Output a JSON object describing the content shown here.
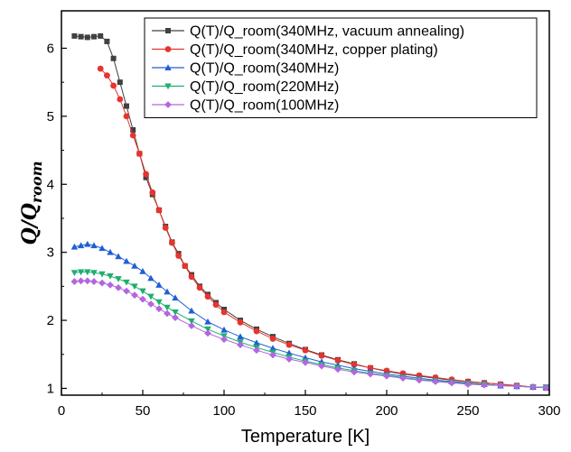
{
  "chart_data": {
    "type": "scatter",
    "xlabel": "Temperature [K]",
    "ylabel_main": "Q/Q",
    "ylabel_sub": "room",
    "xlim": [
      0,
      300
    ],
    "ylim": [
      0.9,
      6.55
    ],
    "xticks": [
      0,
      50,
      100,
      150,
      200,
      250,
      300
    ],
    "yticks": [
      1,
      2,
      3,
      4,
      5,
      6
    ],
    "grid": false,
    "legend_position": "top-right",
    "series": [
      {
        "name": "Q(T)/Q_room(340MHz, vacuum annealing)",
        "color": "#404040",
        "marker": "square",
        "connect": true,
        "x": [
          8,
          12,
          16,
          20,
          24,
          28,
          32,
          36,
          40,
          44,
          48,
          52,
          56,
          60,
          64,
          68,
          72,
          76,
          80,
          85,
          90,
          95,
          100,
          110,
          120,
          130,
          140,
          150,
          160,
          170,
          180,
          190,
          200,
          210,
          220,
          230,
          240,
          250,
          260,
          270,
          280,
          290,
          298
        ],
        "y": [
          6.18,
          6.17,
          6.16,
          6.17,
          6.18,
          6.1,
          5.85,
          5.5,
          5.15,
          4.8,
          4.45,
          4.1,
          3.85,
          3.62,
          3.38,
          3.15,
          2.98,
          2.8,
          2.67,
          2.5,
          2.38,
          2.26,
          2.16,
          2.0,
          1.87,
          1.76,
          1.66,
          1.57,
          1.49,
          1.42,
          1.36,
          1.3,
          1.25,
          1.21,
          1.18,
          1.15,
          1.12,
          1.1,
          1.08,
          1.06,
          1.04,
          1.02,
          1.01
        ]
      },
      {
        "name": "Q(T)/Q_room(340MHz, copper plating)",
        "color": "#e8332e",
        "marker": "circle",
        "connect": true,
        "x": [
          24,
          28,
          32,
          36,
          40,
          44,
          48,
          52,
          56,
          60,
          64,
          68,
          72,
          76,
          80,
          85,
          90,
          95,
          100,
          110,
          120,
          130,
          140,
          150,
          160,
          170,
          180,
          190,
          200,
          210,
          220,
          230,
          240,
          250,
          260,
          270,
          280,
          290,
          298
        ],
        "y": [
          5.7,
          5.6,
          5.45,
          5.25,
          5.0,
          4.72,
          4.45,
          4.15,
          3.88,
          3.62,
          3.36,
          3.14,
          2.95,
          2.8,
          2.64,
          2.48,
          2.35,
          2.23,
          2.12,
          1.97,
          1.84,
          1.73,
          1.64,
          1.56,
          1.48,
          1.41,
          1.35,
          1.3,
          1.26,
          1.22,
          1.19,
          1.16,
          1.13,
          1.1,
          1.08,
          1.06,
          1.04,
          1.02,
          1.01
        ]
      },
      {
        "name": "Q(T)/Q_room(340MHz)",
        "color": "#1f5fd6",
        "marker": "triangle-up",
        "connect": true,
        "x": [
          8,
          12,
          16,
          20,
          25,
          30,
          35,
          40,
          45,
          50,
          55,
          60,
          65,
          70,
          80,
          90,
          100,
          110,
          120,
          130,
          140,
          150,
          160,
          170,
          180,
          190,
          200,
          210,
          220,
          230,
          240,
          250,
          260,
          270,
          280,
          290,
          298
        ],
        "y": [
          3.08,
          3.1,
          3.12,
          3.1,
          3.06,
          3.0,
          2.94,
          2.87,
          2.8,
          2.72,
          2.62,
          2.52,
          2.42,
          2.33,
          2.14,
          1.98,
          1.86,
          1.76,
          1.67,
          1.59,
          1.52,
          1.45,
          1.39,
          1.34,
          1.29,
          1.25,
          1.21,
          1.18,
          1.15,
          1.12,
          1.1,
          1.08,
          1.06,
          1.04,
          1.03,
          1.02,
          1.01
        ]
      },
      {
        "name": "Q(T)/Q_room(220MHz)",
        "color": "#1fae6e",
        "marker": "triangle-down",
        "connect": true,
        "x": [
          8,
          12,
          16,
          20,
          25,
          30,
          35,
          40,
          45,
          50,
          55,
          60,
          65,
          70,
          80,
          90,
          100,
          110,
          120,
          130,
          140,
          150,
          160,
          170,
          180,
          190,
          200,
          210,
          220,
          230,
          240,
          250,
          260,
          270,
          280,
          290,
          298
        ],
        "y": [
          2.7,
          2.71,
          2.71,
          2.7,
          2.68,
          2.65,
          2.61,
          2.56,
          2.5,
          2.43,
          2.35,
          2.27,
          2.19,
          2.12,
          1.99,
          1.87,
          1.77,
          1.68,
          1.6,
          1.53,
          1.46,
          1.4,
          1.35,
          1.3,
          1.26,
          1.22,
          1.19,
          1.16,
          1.13,
          1.11,
          1.09,
          1.07,
          1.06,
          1.04,
          1.03,
          1.02,
          1.02
        ]
      },
      {
        "name": "Q(T)/Q_room(100MHz)",
        "color": "#b266e0",
        "marker": "diamond",
        "connect": true,
        "x": [
          8,
          12,
          16,
          20,
          25,
          30,
          35,
          40,
          45,
          50,
          55,
          60,
          65,
          70,
          80,
          90,
          100,
          110,
          120,
          130,
          140,
          150,
          160,
          170,
          180,
          190,
          200,
          210,
          220,
          230,
          240,
          250,
          260,
          270,
          280,
          290,
          298
        ],
        "y": [
          2.57,
          2.58,
          2.58,
          2.57,
          2.55,
          2.52,
          2.48,
          2.43,
          2.37,
          2.31,
          2.24,
          2.17,
          2.1,
          2.04,
          1.92,
          1.81,
          1.72,
          1.64,
          1.56,
          1.49,
          1.43,
          1.38,
          1.33,
          1.28,
          1.24,
          1.21,
          1.18,
          1.15,
          1.12,
          1.1,
          1.08,
          1.06,
          1.05,
          1.04,
          1.03,
          1.02,
          1.01
        ]
      }
    ]
  }
}
